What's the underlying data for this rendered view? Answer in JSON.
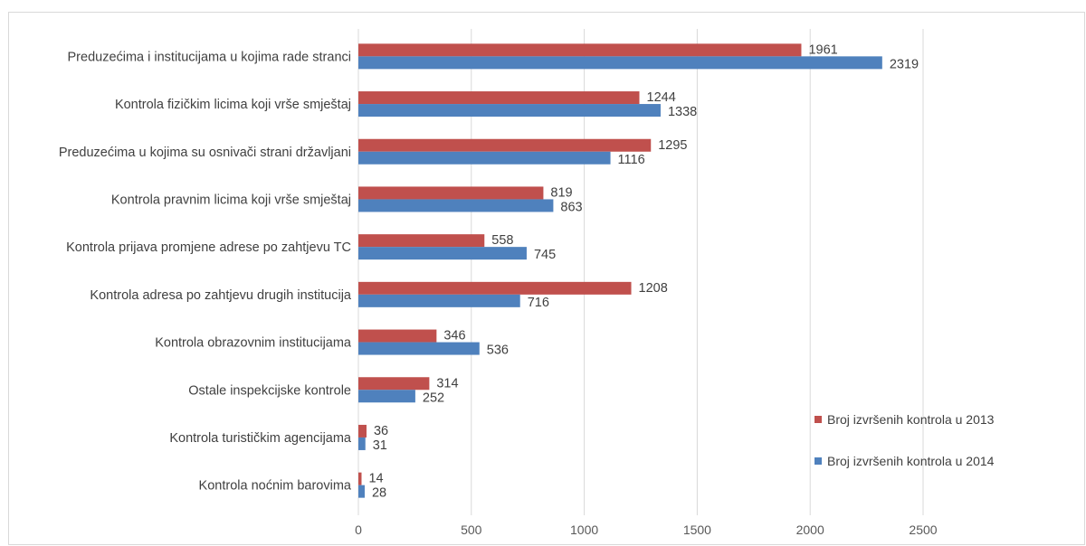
{
  "chart_data": {
    "type": "bar",
    "orientation": "horizontal",
    "categories": [
      "Preduzećima i institucijama u kojima rade stranci",
      "Kontrola fizičkim licima koji vrše smještaj",
      "Preduzećima u kojima su osnivači strani državljani",
      "Kontrola pravnim licima koji vrše smještaj",
      "Kontrola prijava promjene adrese  po zahtjevu TC",
      "Kontrola adresa  po zahtjevu drugih institucija",
      "Kontrola obrazovnim institucijama",
      "Ostale inspekcijske kontrole",
      "Kontrola turističkim agencijama",
      "Kontrola noćnim barovima"
    ],
    "series": [
      {
        "name": "Broj izvršenih kontrola u 2013",
        "color": "#c0504d",
        "values": [
          1961,
          1244,
          1295,
          819,
          558,
          1208,
          346,
          314,
          36,
          14
        ]
      },
      {
        "name": "Broj izvršenih kontrola u 2014",
        "color": "#4f81bd",
        "values": [
          2319,
          1338,
          1116,
          863,
          745,
          716,
          536,
          252,
          31,
          28
        ]
      }
    ],
    "xlim": [
      0,
      2500
    ],
    "xticks": [
      0,
      500,
      1000,
      1500,
      2000,
      2500
    ],
    "grid": true,
    "data_labels": true,
    "legend_position": "bottom-right",
    "title": "",
    "xlabel": "",
    "ylabel": ""
  }
}
